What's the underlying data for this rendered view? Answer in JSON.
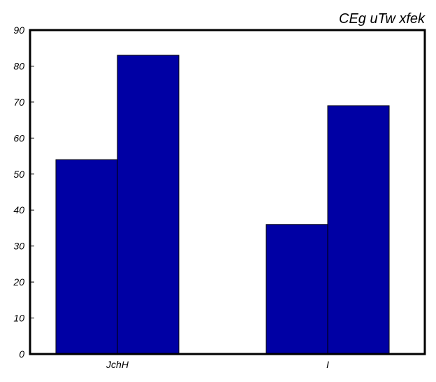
{
  "chart_data": {
    "type": "bar",
    "title": "CEg uTw xfek",
    "categories": [
      "JchH",
      "I"
    ],
    "series": [
      {
        "values": [
          54,
          36
        ]
      },
      {
        "values": [
          83,
          69
        ]
      }
    ],
    "ylim": [
      0,
      90
    ],
    "yticks": [
      0,
      10,
      20,
      30,
      40,
      50,
      60,
      70,
      80,
      90
    ],
    "grid": false,
    "colors": {
      "bar": "#0000a4",
      "bar_edge": "#000000",
      "axis": "#000000"
    }
  }
}
